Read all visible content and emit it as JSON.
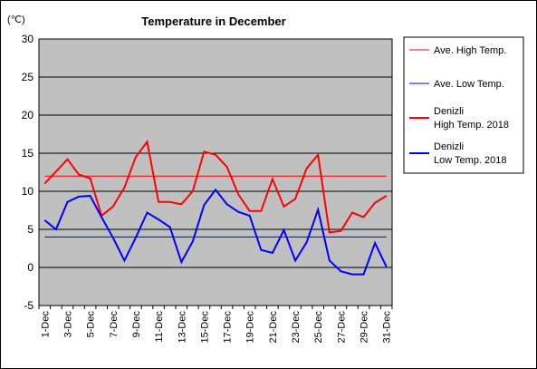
{
  "chart_data": {
    "type": "line",
    "title": "Temperature in December",
    "unit_label": "(℃)",
    "ylim": [
      -5,
      30
    ],
    "y_ticks": [
      -5,
      0,
      5,
      10,
      15,
      20,
      25,
      30
    ],
    "x_tick_labels": [
      "1-Dec",
      "3-Dec",
      "5-Dec",
      "7-Dec",
      "9-Dec",
      "11-Dec",
      "13-Dec",
      "15-Dec",
      "17-Dec",
      "19-Dec",
      "21-Dec",
      "23-Dec",
      "25-Dec",
      "27-Dec",
      "29-Dec",
      "31-Dec"
    ],
    "grid": true,
    "legend_position": "right",
    "plot_background": "#c0c0c0",
    "series": [
      {
        "name": "Ave. High Temp.",
        "color": "#ff0000",
        "constant": 12.0
      },
      {
        "name": "Ave. Low Temp.",
        "color": "#0000ff",
        "constant": 4.0
      },
      {
        "name": "Denizli\nHigh Temp. 2018",
        "color": "#ff0000",
        "values": [
          11.0,
          12.6,
          14.2,
          12.2,
          11.7,
          6.8,
          8.0,
          10.5,
          14.5,
          16.5,
          8.6,
          8.6,
          8.3,
          10.0,
          15.2,
          14.8,
          13.2,
          9.6,
          7.4,
          7.4,
          11.6,
          8.0,
          9.0,
          13.0,
          14.8,
          4.6,
          4.8,
          7.2,
          6.6,
          8.5,
          9.4
        ]
      },
      {
        "name": "Denizli\nLow Temp. 2018",
        "color": "#0000ff",
        "values": [
          6.2,
          5.0,
          8.6,
          9.3,
          9.4,
          6.6,
          3.9,
          0.9,
          3.9,
          7.2,
          6.3,
          5.3,
          0.7,
          3.4,
          8.2,
          10.2,
          8.3,
          7.3,
          6.8,
          2.3,
          1.9,
          4.9,
          0.9,
          3.3,
          7.6,
          0.9,
          -0.5,
          -0.9,
          -0.9,
          3.2,
          0.1
        ]
      }
    ]
  }
}
